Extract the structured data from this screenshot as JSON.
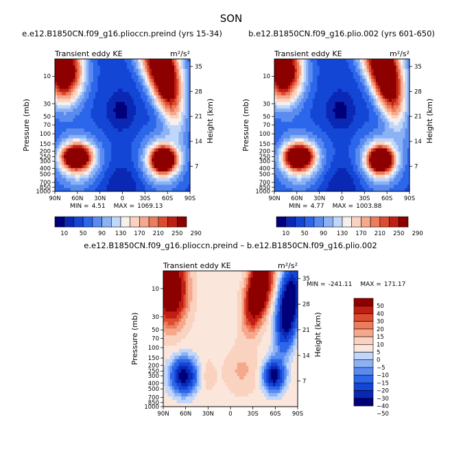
{
  "title": "SON",
  "colors": {
    "palette_abs": [
      "#00007a",
      "#0a28b4",
      "#1446d6",
      "#2c66ea",
      "#5a8cf0",
      "#8cb2f6",
      "#c0d6fa",
      "#f6f0ec",
      "#fad2c0",
      "#f6a88c",
      "#ec7c5c",
      "#dc4c30",
      "#c01e12",
      "#8c0000"
    ],
    "palette_diff": [
      "#00007a",
      "#0a28b4",
      "#1446d6",
      "#2c66ea",
      "#5a8cf0",
      "#8cb2f6",
      "#c0d6fa",
      "#fbe6dc",
      "#fad2c0",
      "#f6a88c",
      "#ec7c5c",
      "#dc4c30",
      "#c01e12",
      "#8c0000"
    ]
  },
  "chart_data": [
    {
      "type": "heatmap",
      "panel": "a",
      "title": "e.e12.B1850CN.f09_g16.plioccn.preind (yrs 15-34)",
      "left_label": "Transient eddy KE",
      "units": "m²/s²",
      "xlabel": "",
      "ylabel": "Pressure (mb)",
      "ylabel_right": "Height (km)",
      "x_ticks": [
        "90N",
        "60N",
        "30N",
        "0",
        "30S",
        "60S",
        "90S"
      ],
      "y_ticks": [
        "10",
        "30",
        "50",
        "70",
        "100",
        "150",
        "200",
        "250",
        "300",
        "400",
        "500",
        "700",
        "850",
        "1000"
      ],
      "y_ticks_right": [
        "35",
        "28",
        "21",
        "14",
        "7"
      ],
      "xlim": [
        90,
        -90
      ],
      "ylim": [
        1000,
        5
      ],
      "min_label": "MIN =",
      "min_value": "4.51",
      "max_label": "MAX =",
      "max_value": "1069.13",
      "contour_levels": [
        10,
        30,
        50,
        70,
        90,
        110,
        130,
        150,
        170,
        190,
        210,
        230,
        250,
        270,
        290
      ],
      "colorbar_ticks": [
        "10",
        "50",
        "90",
        "130",
        "170",
        "210",
        "250",
        "290"
      ],
      "features": [
        {
          "name": "NH tropospheric jet max",
          "lat": 62,
          "p": 250,
          "approx": 290
        },
        {
          "name": "SH tropospheric jet max",
          "lat": -55,
          "p": 280,
          "approx": 300
        },
        {
          "name": "NH stratospheric max",
          "lat": 75,
          "p": 8,
          "approx": 300
        },
        {
          "name": "SH stratospheric max",
          "lat": -55,
          "p": 8,
          "approx": 1069
        },
        {
          "name": "tropical stratospheric min",
          "lat": 2,
          "p": 40,
          "approx": 5
        }
      ]
    },
    {
      "type": "heatmap",
      "panel": "b",
      "title": "b.e12.B1850CN.f09_g16.plio.002 (yrs 601-650)",
      "left_label": "Transient eddy KE",
      "units": "m²/s²",
      "xlabel": "",
      "ylabel": "Pressure (mb)",
      "ylabel_right": "Height (km)",
      "x_ticks": [
        "90N",
        "60N",
        "30N",
        "0",
        "30S",
        "60S",
        "90S"
      ],
      "y_ticks": [
        "10",
        "30",
        "50",
        "70",
        "100",
        "150",
        "200",
        "250",
        "300",
        "400",
        "500",
        "700",
        "850",
        "1000"
      ],
      "y_ticks_right": [
        "35",
        "28",
        "21",
        "14",
        "7"
      ],
      "xlim": [
        90,
        -90
      ],
      "ylim": [
        1000,
        5
      ],
      "min_label": "MIN =",
      "min_value": "4.77",
      "max_label": "MAX =",
      "max_value": "1003.88",
      "contour_levels": [
        10,
        30,
        50,
        70,
        90,
        110,
        130,
        150,
        170,
        190,
        210,
        230,
        250,
        270,
        290
      ],
      "colorbar_ticks": [
        "10",
        "50",
        "90",
        "130",
        "170",
        "210",
        "250",
        "290"
      ],
      "features": [
        {
          "name": "NH tropospheric jet max",
          "lat": 58,
          "p": 250,
          "approx": 300
        },
        {
          "name": "SH tropospheric jet max",
          "lat": -52,
          "p": 280,
          "approx": 300
        },
        {
          "name": "NH stratospheric max",
          "lat": 75,
          "p": 8,
          "approx": 300
        },
        {
          "name": "SH stratospheric max",
          "lat": -55,
          "p": 8,
          "approx": 1004
        },
        {
          "name": "tropical stratospheric min",
          "lat": 2,
          "p": 40,
          "approx": 5
        }
      ]
    },
    {
      "type": "heatmap",
      "panel": "diff",
      "title": "e.e12.B1850CN.f09_g16.plioccn.preind – b.e12.B1850CN.f09_g16.plio.002",
      "left_label": "Transient eddy KE",
      "units": "m²/s²",
      "xlabel": "",
      "ylabel": "Pressure (mb)",
      "ylabel_right": "Height (km)",
      "x_ticks": [
        "90N",
        "60N",
        "30N",
        "0",
        "30S",
        "60S",
        "90S"
      ],
      "y_ticks": [
        "10",
        "30",
        "50",
        "70",
        "100",
        "150",
        "200",
        "250",
        "300",
        "400",
        "500",
        "700",
        "850",
        "1000"
      ],
      "y_ticks_right": [
        "35",
        "28",
        "21",
        "14",
        "7"
      ],
      "xlim": [
        90,
        -90
      ],
      "ylim": [
        1000,
        5
      ],
      "min_label": "MIN =",
      "min_value": "-241.11",
      "max_label": "MAX =",
      "max_value": "171.17",
      "contour_levels": [
        -50,
        -40,
        -30,
        -20,
        -15,
        -10,
        -5,
        0,
        5,
        10,
        15,
        20,
        30,
        40,
        50
      ],
      "colorbar_ticks": [
        "50",
        "40",
        "30",
        "20",
        "15",
        "10",
        "5",
        "0",
        "−5",
        "−10",
        "−15",
        "−20",
        "−30",
        "−40",
        "−50"
      ],
      "features": [
        {
          "name": "NH stratospheric positive",
          "lat": 80,
          "p": 10,
          "approx": 50
        },
        {
          "name": "SH stratospheric positive",
          "lat": -40,
          "p": 10,
          "approx": 171
        },
        {
          "name": "SH stratospheric negative",
          "lat": -80,
          "p": 20,
          "approx": -241
        },
        {
          "name": "NH tropospheric negative",
          "lat": 62,
          "p": 300,
          "approx": -50
        },
        {
          "name": "SH tropospheric negative",
          "lat": -58,
          "p": 300,
          "approx": -50
        }
      ]
    }
  ]
}
